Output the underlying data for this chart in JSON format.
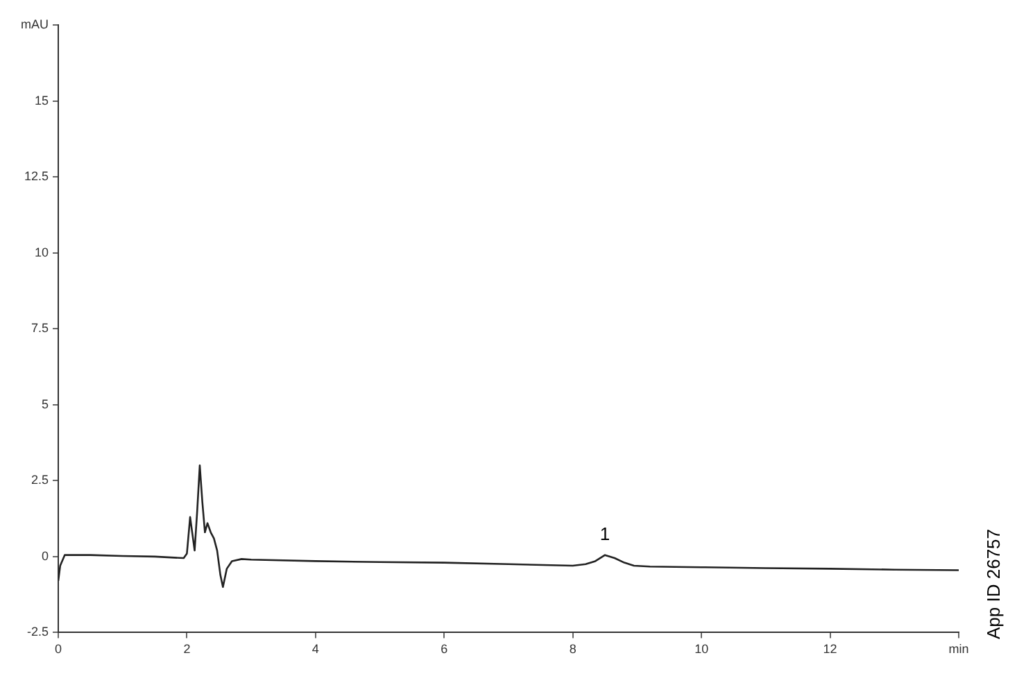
{
  "chart_data": {
    "type": "line",
    "x": [
      0,
      0.03,
      0.1,
      0.5,
      1,
      1.5,
      1.95,
      2.0,
      2.05,
      2.12,
      2.16,
      2.2,
      2.24,
      2.28,
      2.32,
      2.37,
      2.42,
      2.47,
      2.52,
      2.56,
      2.62,
      2.7,
      2.85,
      3,
      4,
      5,
      6,
      7,
      8,
      8.2,
      8.35,
      8.5,
      8.65,
      8.8,
      8.95,
      9.2,
      10,
      11,
      12,
      13,
      14
    ],
    "series": [
      {
        "color": "#222222",
        "values": [
          -0.8,
          -0.3,
          0.05,
          0.05,
          0.02,
          0,
          -0.05,
          0.1,
          1.3,
          0.2,
          1.5,
          3.0,
          1.8,
          0.8,
          1.1,
          0.8,
          0.6,
          0.2,
          -0.6,
          -1.0,
          -0.4,
          -0.15,
          -0.08,
          -0.1,
          -0.15,
          -0.18,
          -0.2,
          -0.25,
          -0.3,
          -0.25,
          -0.15,
          0.05,
          -0.05,
          -0.2,
          -0.3,
          -0.33,
          -0.35,
          -0.38,
          -0.4,
          -0.43,
          -0.45
        ]
      }
    ],
    "xlim": [
      0,
      14
    ],
    "xticks": [
      0,
      2,
      4,
      6,
      8,
      10,
      12,
      {
        "value": 14,
        "label": "min"
      }
    ],
    "ylim": [
      -2.5,
      17.5
    ],
    "yticks": [
      -2.5,
      0,
      2.5,
      5,
      7.5,
      10,
      12.5,
      15,
      {
        "value": 17.5,
        "label": "mAU"
      }
    ],
    "grid": false,
    "legend": false,
    "marker": "none",
    "line_style": "solid",
    "annotations": [
      {
        "text": "1",
        "x": 8.5,
        "y": 0.05
      },
      "App ID 26757"
    ]
  }
}
